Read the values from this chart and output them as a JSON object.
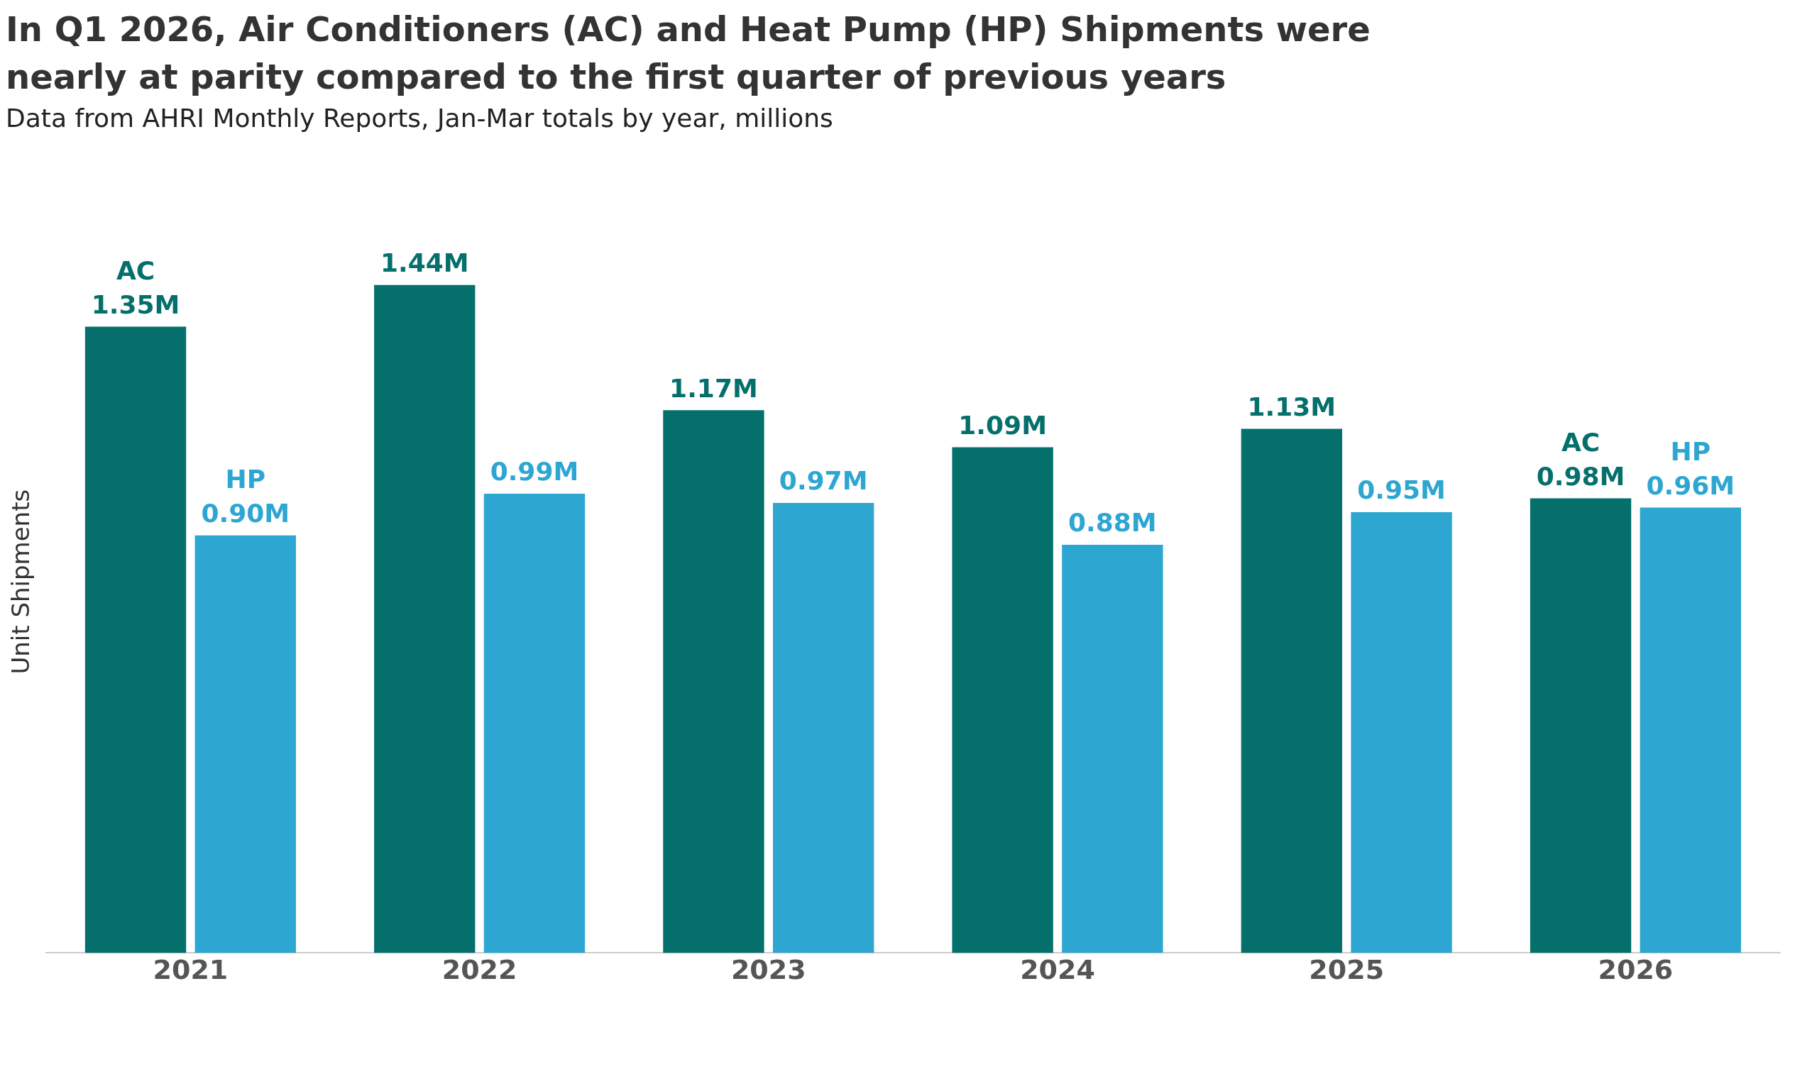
{
  "chart_data": {
    "type": "bar",
    "title": "In Q1 2026, Air Conditioners (AC) and Heat Pump (HP) Shipments were nearly at parity compared to the first quarter of previous years",
    "subtitle": "Data from AHRI Monthly Reports, Jan-Mar totals by year, millions",
    "ylabel": "Unit Shipments",
    "categories": [
      "2021",
      "2022",
      "2023",
      "2024",
      "2025",
      "2026"
    ],
    "series": [
      {
        "name": "AC",
        "color": "#05706b",
        "values": [
          1.35,
          1.44,
          1.17,
          1.09,
          1.13,
          0.98
        ],
        "value_labels": [
          "1.35M",
          "1.44M",
          "1.17M",
          "1.09M",
          "1.13M",
          "0.98M"
        ]
      },
      {
        "name": "HP",
        "color": "#2ea6d2",
        "values": [
          0.9,
          0.99,
          0.97,
          0.88,
          0.95,
          0.96
        ],
        "value_labels": [
          "0.90M",
          "0.99M",
          "0.97M",
          "0.88M",
          "0.95M",
          "0.96M"
        ]
      }
    ],
    "grid": false,
    "legend": false
  }
}
